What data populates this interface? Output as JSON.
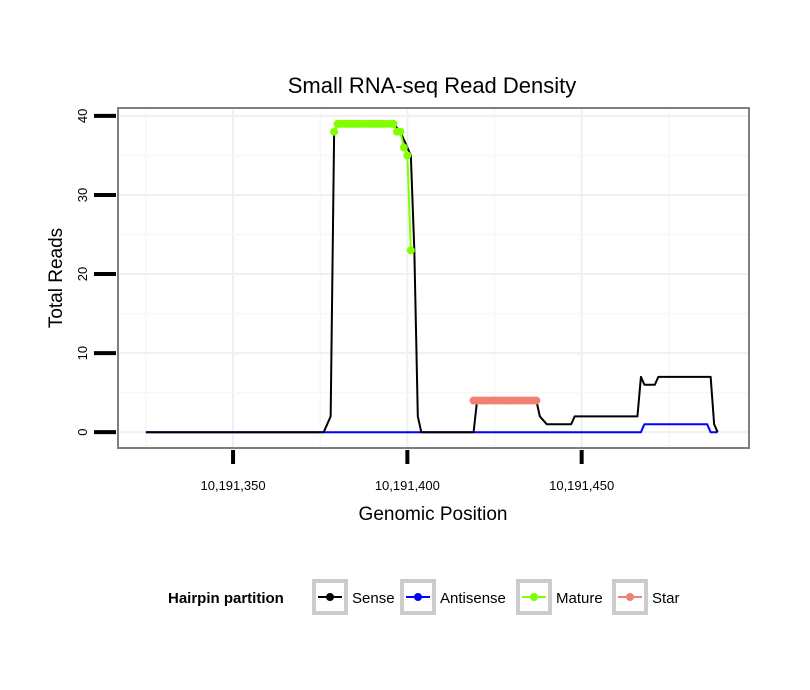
{
  "chart_data": {
    "type": "line",
    "title": "Small RNA-seq Read Density",
    "xlabel": "Genomic Position",
    "ylabel": "Total Reads",
    "xlim": [
      10191317,
      10191498
    ],
    "ylim": [
      -2,
      41
    ],
    "x_ticks": [
      10191350,
      10191400,
      10191450
    ],
    "x_tick_labels": [
      "10,191,350",
      "10,191,400",
      "10,191,450"
    ],
    "y_ticks": [
      0,
      10,
      20,
      30,
      40
    ],
    "y_tick_labels": [
      "0",
      "10",
      "20",
      "30",
      "40"
    ],
    "grid": true,
    "legend": {
      "title": "Hairpin partition",
      "position": "bottom",
      "entries": [
        {
          "name": "Sense",
          "color": "#000000"
        },
        {
          "name": "Antisense",
          "color": "#0000ff"
        },
        {
          "name": "Mature",
          "color": "#7fff00"
        },
        {
          "name": "Star",
          "color": "#f08070"
        }
      ]
    },
    "series": [
      {
        "name": "Sense",
        "color": "#000000",
        "style": "line",
        "x": [
          10191325,
          10191376,
          10191378,
          10191379,
          10191380,
          10191396,
          10191398,
          10191400,
          10191401,
          10191402,
          10191403,
          10191404,
          10191419,
          10191420,
          10191437,
          10191438,
          10191439,
          10191440,
          10191441,
          10191447,
          10191448,
          10191466,
          10191467,
          10191468,
          10191471,
          10191472,
          10191487,
          10191488,
          10191489
        ],
        "y": [
          0,
          0,
          2,
          38,
          39,
          39,
          38,
          36,
          35,
          23,
          2,
          0,
          0,
          4,
          4,
          2,
          1.5,
          1,
          1,
          1,
          2,
          2,
          7,
          6,
          6,
          7,
          7,
          1,
          0
        ]
      },
      {
        "name": "Antisense",
        "color": "#0000ff",
        "style": "line",
        "x": [
          10191325,
          10191467,
          10191468,
          10191486,
          10191487,
          10191489
        ],
        "y": [
          0,
          0,
          1,
          1,
          0,
          0
        ]
      },
      {
        "name": "Mature",
        "color": "#7fff00",
        "style": "line+points",
        "x": [
          10191379,
          10191380,
          10191381,
          10191382,
          10191383,
          10191384,
          10191385,
          10191386,
          10191387,
          10191388,
          10191389,
          10191390,
          10191391,
          10191392,
          10191393,
          10191394,
          10191395,
          10191396,
          10191397,
          10191398,
          10191399,
          10191400,
          10191401
        ],
        "y": [
          38,
          39,
          39,
          39,
          39,
          39,
          39,
          39,
          39,
          39,
          39,
          39,
          39,
          39,
          39,
          39,
          39,
          39,
          38,
          38,
          36,
          35,
          23
        ]
      },
      {
        "name": "Star",
        "color": "#f08070",
        "style": "line+points",
        "x": [
          10191419,
          10191420,
          10191421,
          10191422,
          10191423,
          10191424,
          10191425,
          10191426,
          10191427,
          10191428,
          10191429,
          10191430,
          10191431,
          10191432,
          10191433,
          10191434,
          10191435,
          10191436,
          10191437
        ],
        "y": [
          4,
          4,
          4,
          4,
          4,
          4,
          4,
          4,
          4,
          4,
          4,
          4,
          4,
          4,
          4,
          4,
          4,
          4,
          4
        ]
      }
    ]
  }
}
